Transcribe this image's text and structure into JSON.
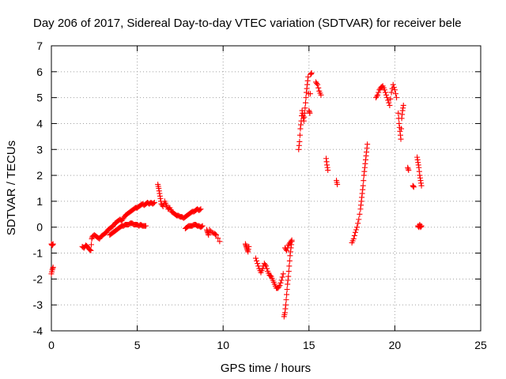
{
  "chart_data": {
    "type": "scatter",
    "title": "Day 206 of 2017, Sidereal Day-to-day VTEC variation (SDTVAR) for receiver bele",
    "xlabel": "GPS time / hours",
    "ylabel": "SDTVAR / TECUs",
    "xlim": [
      0,
      25
    ],
    "ylim": [
      -4,
      7
    ],
    "xticks": [
      "0",
      "5",
      "10",
      "15",
      "20",
      "25"
    ],
    "yticks": [
      "-4",
      "-3",
      "-2",
      "-1",
      "0",
      "1",
      "2",
      "3",
      "4",
      "5",
      "6",
      "7"
    ],
    "grid": true,
    "marker": "plus",
    "color": "#ff0000",
    "segments": [
      {
        "x": [
          0.0,
          0.05,
          0.1
        ],
        "y": [
          -0.65,
          -0.7,
          -0.65
        ]
      },
      {
        "x": [
          0.0,
          0.05,
          0.1
        ],
        "y": [
          -1.8,
          -1.65,
          -1.55
        ]
      },
      {
        "x": [
          1.8,
          1.9,
          2.0,
          2.1,
          2.2,
          2.3,
          2.35,
          2.4,
          2.5,
          2.6,
          2.7,
          2.8,
          2.9,
          3.0,
          3.1,
          3.2,
          3.3,
          3.4,
          3.5,
          3.6,
          3.7,
          3.8,
          3.9,
          4.0,
          4.1,
          4.2,
          4.3,
          4.4,
          4.5,
          4.6,
          4.7,
          4.8,
          4.9,
          5.0,
          5.1,
          5.2,
          5.3,
          5.4,
          5.5,
          5.6,
          5.7,
          5.8,
          5.9,
          6.0
        ],
        "y": [
          -0.75,
          -0.8,
          -0.7,
          -0.75,
          -0.85,
          -0.9,
          -0.45,
          -0.35,
          -0.3,
          -0.35,
          -0.4,
          -0.45,
          -0.35,
          -0.3,
          -0.25,
          -0.2,
          -0.1,
          -0.05,
          0.0,
          0.05,
          0.15,
          0.2,
          0.25,
          0.3,
          0.25,
          0.35,
          0.45,
          0.5,
          0.55,
          0.6,
          0.65,
          0.7,
          0.75,
          0.75,
          0.8,
          0.85,
          0.9,
          0.85,
          0.9,
          0.95,
          0.9,
          0.95,
          0.9,
          0.95
        ]
      },
      {
        "x": [
          3.4,
          3.5,
          3.6,
          3.7,
          3.8,
          3.9,
          4.0,
          4.1,
          4.2,
          4.3,
          4.4,
          4.5,
          4.6,
          4.7,
          4.8,
          4.9,
          5.0,
          5.1,
          5.2,
          5.3,
          5.4,
          5.5
        ],
        "y": [
          -0.3,
          -0.25,
          -0.2,
          -0.15,
          -0.1,
          -0.05,
          0.0,
          0.05,
          0.05,
          0.1,
          0.1,
          0.1,
          0.15,
          0.15,
          0.1,
          0.1,
          0.1,
          0.05,
          0.1,
          0.05,
          0.05,
          0.05
        ]
      },
      {
        "x": [
          6.2,
          6.25,
          6.3,
          6.35,
          6.4,
          6.5,
          6.6,
          6.7,
          6.8,
          6.9,
          7.0,
          7.1,
          7.2,
          7.3,
          7.4,
          7.5,
          7.6,
          7.7,
          7.8,
          7.9,
          8.0,
          8.1,
          8.2,
          8.3,
          8.4,
          8.5,
          8.6,
          8.7
        ],
        "y": [
          1.65,
          1.5,
          1.3,
          1.1,
          0.9,
          0.8,
          1.0,
          0.85,
          0.7,
          0.75,
          0.6,
          0.55,
          0.5,
          0.45,
          0.45,
          0.4,
          0.4,
          0.35,
          0.4,
          0.45,
          0.5,
          0.55,
          0.6,
          0.6,
          0.65,
          0.7,
          0.65,
          0.7
        ]
      },
      {
        "x": [
          7.8,
          7.9,
          8.0,
          8.1,
          8.2,
          8.3,
          8.4,
          8.5,
          8.6,
          8.7,
          8.8
        ],
        "y": [
          -0.05,
          0.0,
          0.05,
          0.05,
          0.05,
          0.1,
          0.1,
          0.05,
          0.05,
          0.0,
          0.05
        ]
      },
      {
        "x": [
          9.05,
          9.1,
          9.15,
          9.2,
          9.35,
          9.5,
          9.6,
          9.8
        ],
        "y": [
          -0.1,
          -0.2,
          -0.3,
          -0.1,
          -0.2,
          -0.25,
          -0.3,
          -0.55
        ]
      },
      {
        "x": [
          11.3,
          11.35,
          11.4,
          11.45,
          11.5
        ],
        "y": [
          -0.65,
          -0.75,
          -0.85,
          -0.95,
          -0.75
        ]
      },
      {
        "x": [
          11.9,
          12.0,
          12.1,
          12.2,
          12.3,
          12.4,
          12.5,
          12.6,
          12.7,
          12.8,
          12.9,
          13.0,
          13.1,
          13.2,
          13.3,
          13.4,
          13.5
        ],
        "y": [
          -1.2,
          -1.4,
          -1.6,
          -1.75,
          -1.6,
          -1.4,
          -1.5,
          -1.7,
          -1.85,
          -1.9,
          -2.05,
          -2.2,
          -2.35,
          -2.35,
          -2.25,
          -2.05,
          -1.8
        ]
      },
      {
        "x": [
          13.55,
          13.6,
          13.65,
          13.7,
          13.75,
          13.8,
          13.85,
          13.9,
          13.95,
          14.0
        ],
        "y": [
          -3.45,
          -3.3,
          -3.0,
          -2.6,
          -2.2,
          -1.9,
          -1.5,
          -1.1,
          -0.8,
          -0.55
        ]
      },
      {
        "x": [
          13.6,
          13.7,
          13.8,
          13.9,
          14.0
        ],
        "y": [
          -0.8,
          -0.9,
          -0.7,
          -0.6,
          -0.5
        ]
      },
      {
        "x": [
          14.4,
          14.45,
          14.5,
          14.55,
          14.6,
          14.65,
          14.7,
          14.75,
          14.8,
          14.85,
          14.9,
          14.95,
          15.0,
          15.05,
          15.1,
          15.15
        ],
        "y": [
          3.0,
          3.3,
          3.8,
          4.1,
          4.5,
          4.3,
          4.1,
          4.4,
          4.8,
          5.2,
          5.5,
          5.8,
          4.5,
          4.4,
          5.9,
          5.95
        ]
      },
      {
        "x": [
          15.4,
          15.5,
          15.6,
          15.7
        ],
        "y": [
          5.6,
          5.5,
          5.25,
          5.1
        ]
      },
      {
        "x": [
          16.0,
          16.05,
          16.1
        ],
        "y": [
          2.65,
          2.4,
          2.2
        ]
      },
      {
        "x": [
          16.6,
          16.65
        ],
        "y": [
          1.8,
          1.65
        ]
      },
      {
        "x": [
          17.5,
          17.6,
          17.7,
          17.8,
          17.9,
          18.0,
          18.05,
          18.1,
          18.15,
          18.2,
          18.25,
          18.3,
          18.35,
          18.4
        ],
        "y": [
          -0.6,
          -0.45,
          -0.2,
          0.0,
          0.3,
          0.7,
          1.0,
          1.3,
          1.6,
          2.0,
          2.3,
          2.6,
          2.9,
          3.2
        ]
      },
      {
        "x": [
          18.9,
          19.0,
          19.1,
          19.2,
          19.3,
          19.4,
          19.5,
          19.6,
          19.7,
          19.8,
          19.9,
          20.0,
          20.1
        ],
        "y": [
          5.0,
          5.1,
          5.3,
          5.4,
          5.45,
          5.3,
          5.1,
          4.9,
          4.7,
          5.2,
          5.5,
          5.3,
          5.0
        ]
      },
      {
        "x": [
          20.2,
          20.25,
          20.3,
          20.35,
          20.4,
          20.45,
          20.5
        ],
        "y": [
          4.4,
          4.0,
          3.7,
          3.4,
          4.2,
          4.5,
          4.7
        ]
      },
      {
        "x": [
          20.75,
          20.8
        ],
        "y": [
          2.3,
          2.2
        ]
      },
      {
        "x": [
          21.05,
          21.1
        ],
        "y": [
          1.6,
          1.55
        ]
      },
      {
        "x": [
          21.3,
          21.35,
          21.4,
          21.45,
          21.5,
          21.55
        ],
        "y": [
          2.7,
          2.5,
          2.3,
          2.0,
          1.8,
          1.6
        ]
      },
      {
        "x": [
          21.35,
          21.4,
          21.45,
          21.5,
          21.55
        ],
        "y": [
          0.05,
          0.0,
          0.1,
          0.0,
          0.05
        ]
      }
    ]
  }
}
